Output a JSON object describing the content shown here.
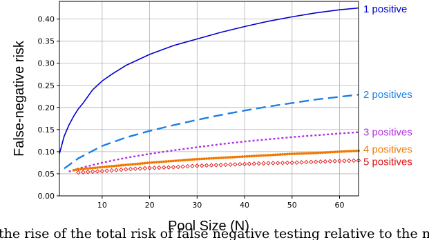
{
  "chart_data": {
    "type": "line",
    "xlabel": "Pool Size (N)",
    "ylabel": "False-negative risk",
    "xlim": [
      1,
      64
    ],
    "ylim": [
      0,
      0.44
    ],
    "xticks": [
      10,
      20,
      30,
      40,
      50,
      60
    ],
    "yticks": [
      0.0,
      0.05,
      0.1,
      0.15,
      0.2,
      0.25,
      0.3,
      0.35,
      0.4
    ],
    "ytick_labels": [
      "0.00",
      "0.05",
      "0.10",
      "0.15",
      "0.20",
      "0.25",
      "0.30",
      "0.35",
      "0.40"
    ],
    "xtick_labels": [
      "10",
      "20",
      "30",
      "40",
      "50",
      "60"
    ],
    "grid": true,
    "legend": "labels at right end of each line",
    "series": [
      {
        "name": "1 positive",
        "color": "#0000cc",
        "style": "solid",
        "x": [
          1,
          2,
          3,
          4,
          5,
          6,
          8,
          10,
          12,
          15,
          20,
          25,
          30,
          35,
          40,
          45,
          50,
          55,
          60,
          64
        ],
        "y": [
          0.095,
          0.135,
          0.16,
          0.18,
          0.197,
          0.21,
          0.24,
          0.26,
          0.275,
          0.295,
          0.32,
          0.34,
          0.355,
          0.37,
          0.383,
          0.395,
          0.405,
          0.414,
          0.421,
          0.425
        ]
      },
      {
        "name": "2 positives",
        "color": "#1a7fe6",
        "style": "dashed",
        "x": [
          2,
          5,
          10,
          15,
          20,
          25,
          30,
          35,
          40,
          45,
          50,
          55,
          60,
          64
        ],
        "y": [
          0.062,
          0.085,
          0.113,
          0.132,
          0.147,
          0.16,
          0.172,
          0.183,
          0.193,
          0.202,
          0.21,
          0.218,
          0.224,
          0.229
        ]
      },
      {
        "name": "3 positives",
        "color": "#b030e0",
        "style": "dotted",
        "x": [
          3,
          5,
          10,
          15,
          20,
          25,
          30,
          35,
          40,
          45,
          50,
          55,
          60,
          64
        ],
        "y": [
          0.055,
          0.062,
          0.075,
          0.086,
          0.095,
          0.103,
          0.11,
          0.117,
          0.123,
          0.128,
          0.133,
          0.137,
          0.141,
          0.144
        ]
      },
      {
        "name": "4 positives",
        "color": "#f07800",
        "style": "dots",
        "x": [
          4,
          5,
          10,
          15,
          20,
          25,
          30,
          35,
          40,
          45,
          50,
          55,
          60,
          64
        ],
        "y": [
          0.058,
          0.06,
          0.065,
          0.07,
          0.075,
          0.079,
          0.083,
          0.086,
          0.089,
          0.092,
          0.095,
          0.097,
          0.1,
          0.102
        ]
      },
      {
        "name": "5 positives",
        "color": "#e01010",
        "style": "diamonds",
        "x": [
          5,
          10,
          15,
          20,
          25,
          30,
          35,
          40,
          45,
          50,
          55,
          60,
          64
        ],
        "y": [
          0.053,
          0.056,
          0.06,
          0.063,
          0.065,
          0.068,
          0.07,
          0.072,
          0.074,
          0.075,
          0.077,
          0.079,
          0.08
        ]
      }
    ]
  },
  "caption": "the rise of the total risk of false negative testing relative to the number of positives in the pool"
}
